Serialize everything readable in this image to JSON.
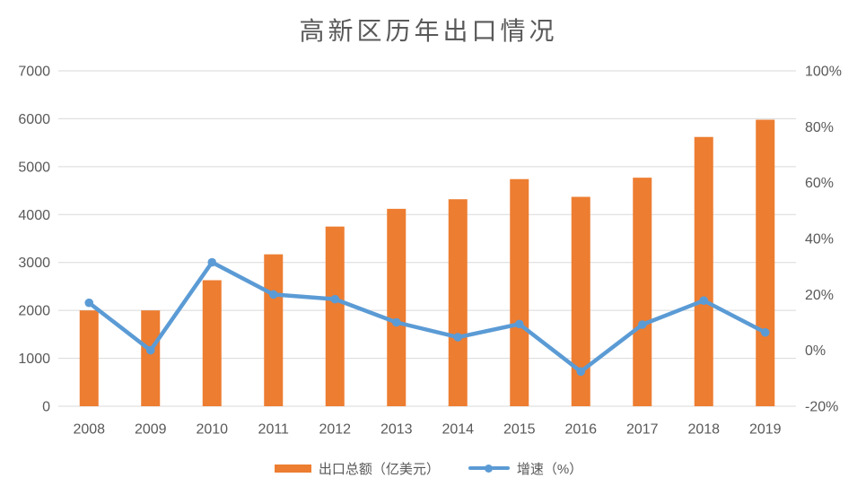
{
  "chart_data": {
    "type": "bar+line",
    "title": "高新区历年出口情况",
    "categories": [
      "2008",
      "2009",
      "2010",
      "2011",
      "2012",
      "2013",
      "2014",
      "2015",
      "2016",
      "2017",
      "2018",
      "2019"
    ],
    "series": [
      {
        "name": "出口总额（亿美元）",
        "type": "bar",
        "axis": "left",
        "color": "#ED7D31",
        "values": [
          2000,
          2000,
          2630,
          3170,
          3750,
          4120,
          4320,
          4740,
          4370,
          4770,
          5620,
          5980
        ]
      },
      {
        "name": "增速（%）",
        "type": "line",
        "axis": "right",
        "color": "#5B9BD5",
        "values": [
          17,
          0,
          31.5,
          20,
          18.3,
          10,
          4.7,
          9.4,
          -7.6,
          9.2,
          17.8,
          6.4
        ]
      }
    ],
    "axes": {
      "left": {
        "min": 0,
        "max": 7000,
        "tick_labels_top_to_bottom": [
          "7000",
          "6000",
          "5000",
          "4000",
          "3000",
          "2000",
          "1000",
          "0"
        ]
      },
      "right": {
        "min": -20,
        "max": 100,
        "tick_labels_top_to_bottom": [
          "100%",
          "80%",
          "60%",
          "40%",
          "20%",
          "0%",
          "-20%"
        ]
      }
    },
    "grid": "horizontal",
    "legend_position": "bottom",
    "colors": {
      "grid": "#D9D9D9",
      "axis_text": "#595959",
      "title_text": "#595959",
      "background": "#FFFFFF"
    }
  }
}
